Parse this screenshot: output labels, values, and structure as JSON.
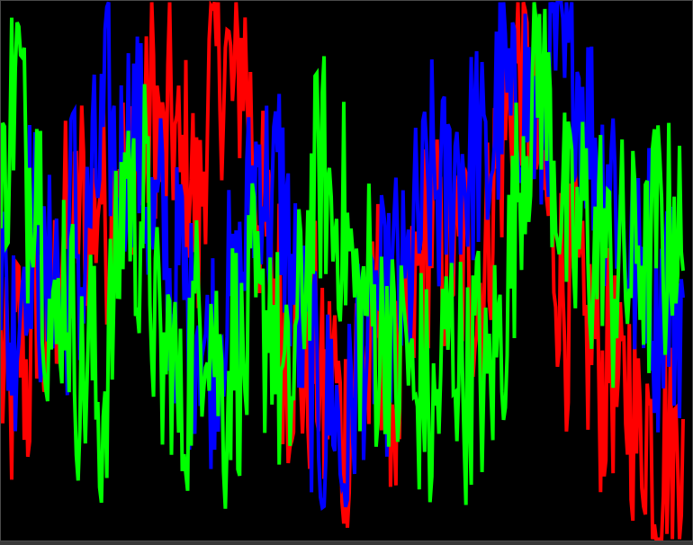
{
  "chart_data": {
    "type": "line",
    "background": "#000000",
    "grid": false,
    "axes_visible": false,
    "legend": "none",
    "title": "",
    "xlabel": "",
    "ylabel": "",
    "x": [
      0,
      10,
      20,
      30,
      40,
      50,
      60,
      70,
      80,
      90,
      100,
      110,
      120,
      130,
      140,
      150,
      160,
      170,
      180,
      190,
      200,
      210,
      220,
      230,
      240,
      250,
      260,
      270,
      280,
      290,
      300,
      310,
      320,
      330,
      340,
      350,
      360,
      370,
      380,
      390,
      400,
      410,
      420,
      430,
      440,
      450,
      460,
      470,
      480,
      490,
      500,
      510,
      520,
      530,
      540,
      550,
      560,
      570,
      580,
      590,
      600,
      610,
      620,
      630,
      640,
      650,
      660,
      670,
      680,
      690,
      700,
      710,
      720,
      730,
      740,
      750,
      760
    ],
    "xlim": [
      0,
      770
    ],
    "ylim": [
      -1.0,
      1.0
    ],
    "series": [
      {
        "color": "#ff0000",
        "values": [
          -0.35,
          -0.55,
          -0.2,
          -0.45,
          -0.05,
          -0.3,
          -0.1,
          0.15,
          0.05,
          0.3,
          0.1,
          0.35,
          0.2,
          0.5,
          0.25,
          0.55,
          0.4,
          0.7,
          0.35,
          0.6,
          0.3,
          0.45,
          0.1,
          0.65,
          0.75,
          0.8,
          0.6,
          0.85,
          0.5,
          0.2,
          0.05,
          -0.1,
          -0.35,
          -0.2,
          -0.45,
          -0.25,
          -0.55,
          -0.3,
          -0.65,
          -0.45,
          -0.2,
          -0.4,
          -0.1,
          -0.3,
          -0.5,
          -0.35,
          -0.15,
          0.05,
          0.2,
          0.0,
          0.15,
          -0.05,
          0.1,
          -0.1,
          0.05,
          0.35,
          0.5,
          0.7,
          0.8,
          0.55,
          0.4,
          0.2,
          0.05,
          -0.15,
          -0.05,
          -0.3,
          -0.2,
          -0.45,
          -0.3,
          -0.55,
          -0.4,
          -0.65,
          -0.5,
          -0.8,
          -0.6,
          -0.7,
          -0.55
        ]
      },
      {
        "color": "#0000ff",
        "values": [
          0.05,
          -0.25,
          -0.1,
          0.2,
          0.1,
          -0.2,
          0.15,
          -0.3,
          0.35,
          -0.1,
          0.25,
          0.4,
          0.6,
          0.3,
          0.5,
          0.55,
          0.35,
          0.1,
          0.2,
          -0.15,
          0.05,
          -0.25,
          -0.1,
          -0.35,
          -0.2,
          -0.05,
          -0.25,
          0.05,
          0.3,
          0.45,
          0.2,
          0.35,
          0.1,
          -0.15,
          -0.3,
          -0.45,
          -0.6,
          -0.4,
          -0.75,
          -0.55,
          -0.2,
          -0.35,
          -0.1,
          -0.25,
          0.0,
          -0.15,
          0.1,
          0.2,
          0.35,
          0.25,
          0.3,
          0.45,
          0.35,
          0.5,
          0.3,
          0.55,
          0.7,
          0.5,
          0.75,
          0.6,
          0.45,
          0.7,
          0.85,
          0.65,
          0.8,
          0.6,
          0.5,
          0.35,
          0.45,
          0.2,
          0.1,
          -0.05,
          0.15,
          -0.2,
          0.0,
          -0.15,
          -0.1
        ]
      },
      {
        "color": "#00ff00",
        "values": [
          0.15,
          0.6,
          0.75,
          0.3,
          0.55,
          -0.05,
          -0.35,
          0.05,
          -0.2,
          -0.45,
          -0.25,
          -0.6,
          -0.3,
          0.0,
          0.45,
          0.1,
          0.3,
          -0.15,
          -0.4,
          -0.25,
          -0.6,
          -0.35,
          -0.15,
          -0.05,
          -0.3,
          -0.5,
          -0.2,
          -0.45,
          -0.1,
          -0.3,
          -0.05,
          -0.4,
          -0.55,
          -0.25,
          0.05,
          0.3,
          0.4,
          0.15,
          0.25,
          0.0,
          -0.2,
          -0.05,
          -0.3,
          -0.15,
          -0.45,
          -0.2,
          -0.55,
          -0.35,
          -0.65,
          -0.4,
          -0.2,
          -0.3,
          -0.45,
          -0.25,
          -0.5,
          -0.3,
          -0.2,
          0.1,
          0.45,
          0.6,
          0.8,
          0.55,
          0.35,
          0.15,
          0.05,
          0.25,
          0.0,
          0.2,
          -0.1,
          0.1,
          -0.05,
          0.15,
          -0.05,
          0.2,
          0.05,
          0.25,
          0.0
        ]
      }
    ]
  }
}
